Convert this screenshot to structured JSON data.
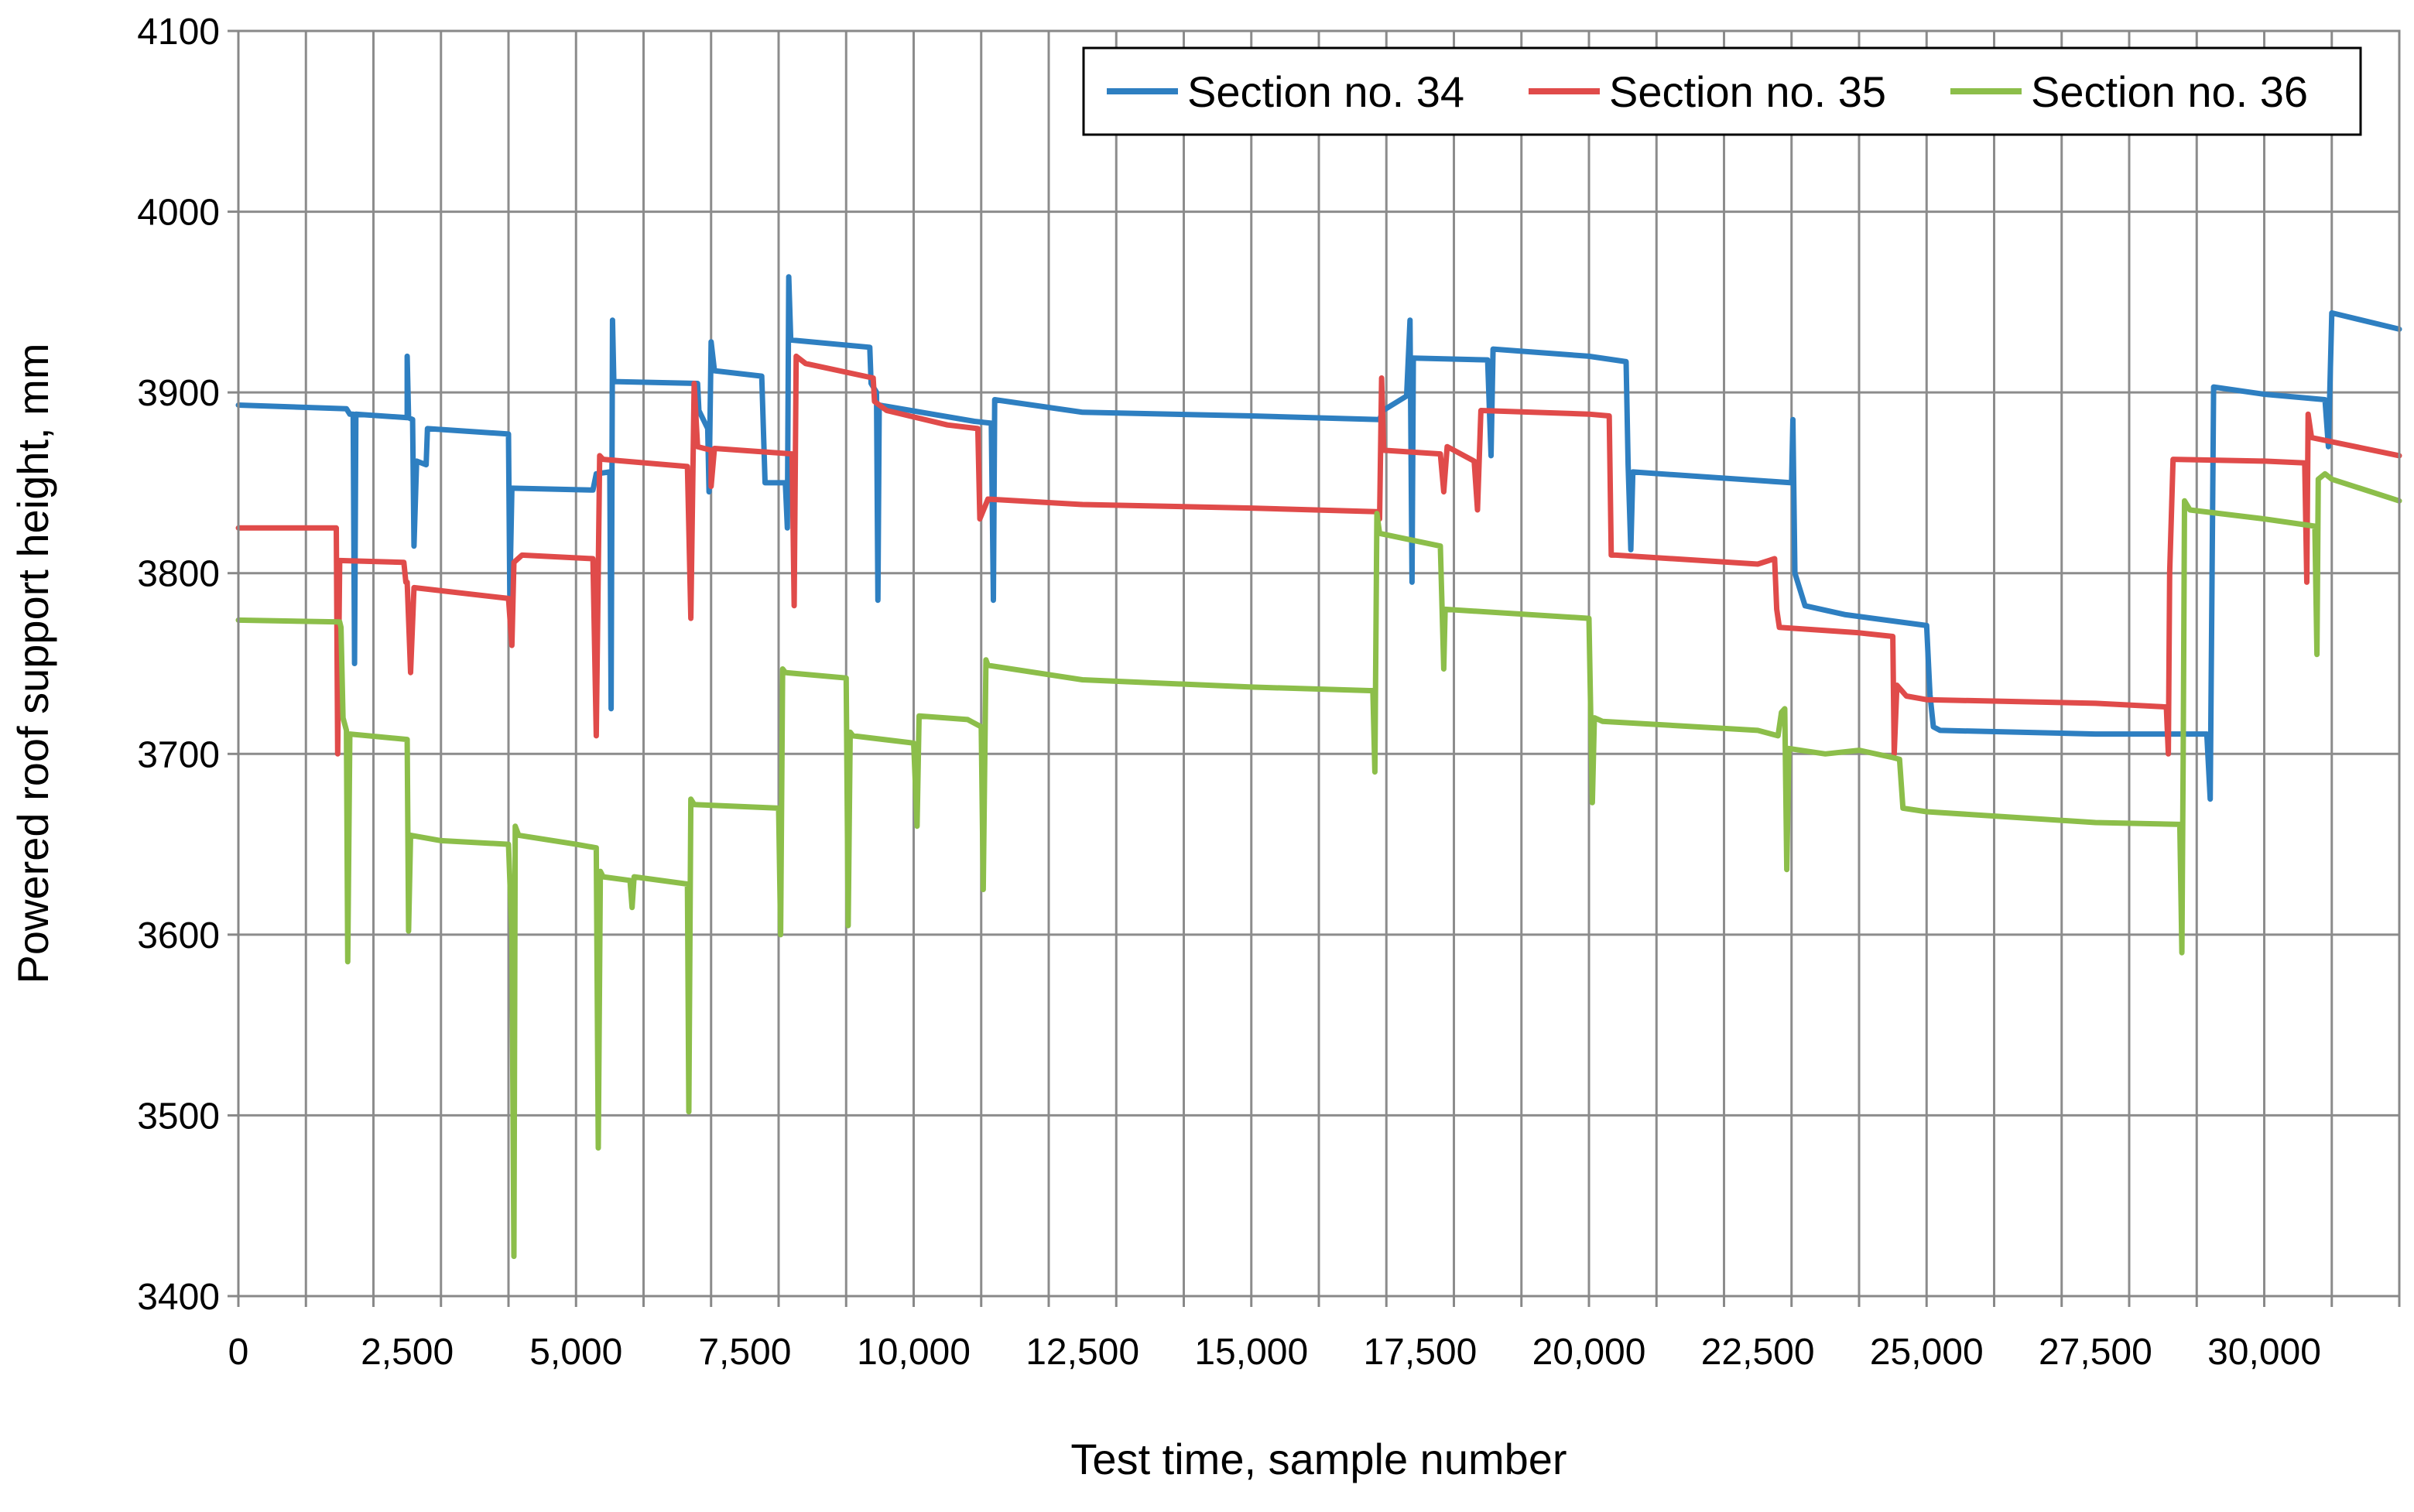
{
  "chart_data": {
    "type": "line",
    "title": "",
    "xlabel": "Test time, sample number",
    "ylabel": "Powered roof support  height, mm",
    "xlim": [
      0,
      32000
    ],
    "ylim": [
      3400,
      4100
    ],
    "x_tick_values": [
      0,
      2500,
      5000,
      7500,
      10000,
      12500,
      15000,
      17500,
      20000,
      22500,
      25000,
      27500,
      30000
    ],
    "x_tick_labels": [
      "0",
      "2,500",
      "5,000",
      "7,500",
      "10,000",
      "12,500",
      "15,000",
      "17,500",
      "20,000",
      "22,500",
      "25,000",
      "27,500",
      "30,000"
    ],
    "x_grid_step": 1000,
    "y_tick_values": [
      3400,
      3500,
      3600,
      3700,
      3800,
      3900,
      4000,
      4100
    ],
    "y_tick_labels": [
      "3400",
      "3500",
      "3600",
      "3700",
      "3800",
      "3900",
      "4000",
      "4100"
    ],
    "grid": true,
    "legend_position": "top-right",
    "series": [
      {
        "name": "Section no. 34",
        "color": "#2e7fc1",
        "points": [
          [
            0,
            3893
          ],
          [
            1600,
            3891
          ],
          [
            1650,
            3888
          ],
          [
            1700,
            3888
          ],
          [
            1720,
            3750
          ],
          [
            1740,
            3888
          ],
          [
            2500,
            3886
          ],
          [
            2500,
            3920
          ],
          [
            2520,
            3886
          ],
          [
            2580,
            3885
          ],
          [
            2600,
            3815
          ],
          [
            2640,
            3862
          ],
          [
            2780,
            3860
          ],
          [
            2800,
            3880
          ],
          [
            4000,
            3877
          ],
          [
            4020,
            3788
          ],
          [
            4050,
            3847
          ],
          [
            5250,
            3846
          ],
          [
            5300,
            3855
          ],
          [
            5500,
            3856
          ],
          [
            5520,
            3725
          ],
          [
            5540,
            3940
          ],
          [
            5560,
            3906
          ],
          [
            6800,
            3905
          ],
          [
            6820,
            3890
          ],
          [
            6950,
            3880
          ],
          [
            6970,
            3845
          ],
          [
            7000,
            3928
          ],
          [
            7050,
            3912
          ],
          [
            7750,
            3909
          ],
          [
            7800,
            3850
          ],
          [
            8100,
            3850
          ],
          [
            8130,
            3825
          ],
          [
            8150,
            3964
          ],
          [
            8180,
            3929
          ],
          [
            9350,
            3925
          ],
          [
            9370,
            3905
          ],
          [
            9450,
            3900
          ],
          [
            9470,
            3785
          ],
          [
            9490,
            3893
          ],
          [
            10900,
            3884
          ],
          [
            11150,
            3883
          ],
          [
            11180,
            3785
          ],
          [
            11200,
            3896
          ],
          [
            12500,
            3889
          ],
          [
            15000,
            3887
          ],
          [
            16900,
            3885
          ],
          [
            16950,
            3890
          ],
          [
            17300,
            3898
          ],
          [
            17350,
            3940
          ],
          [
            17380,
            3795
          ],
          [
            17400,
            3919
          ],
          [
            18500,
            3918
          ],
          [
            18550,
            3865
          ],
          [
            18580,
            3924
          ],
          [
            20000,
            3920
          ],
          [
            20550,
            3917
          ],
          [
            20580,
            3860
          ],
          [
            20620,
            3813
          ],
          [
            20650,
            3856
          ],
          [
            23000,
            3850
          ],
          [
            23020,
            3885
          ],
          [
            23050,
            3800
          ],
          [
            23200,
            3782
          ],
          [
            23800,
            3777
          ],
          [
            25000,
            3771
          ],
          [
            25050,
            3733
          ],
          [
            25100,
            3715
          ],
          [
            25200,
            3713
          ],
          [
            27500,
            3711
          ],
          [
            29150,
            3711
          ],
          [
            29200,
            3675
          ],
          [
            29250,
            3903
          ],
          [
            30000,
            3899
          ],
          [
            30900,
            3896
          ],
          [
            30950,
            3870
          ],
          [
            31000,
            3944
          ],
          [
            32000,
            3935
          ]
        ]
      },
      {
        "name": "Section no. 35",
        "color": "#e04b4a",
        "points": [
          [
            0,
            3825
          ],
          [
            1450,
            3825
          ],
          [
            1470,
            3700
          ],
          [
            1500,
            3807
          ],
          [
            2450,
            3806
          ],
          [
            2480,
            3795
          ],
          [
            2500,
            3795
          ],
          [
            2550,
            3745
          ],
          [
            2600,
            3792
          ],
          [
            4000,
            3786
          ],
          [
            4050,
            3760
          ],
          [
            4080,
            3806
          ],
          [
            4200,
            3810
          ],
          [
            5250,
            3808
          ],
          [
            5300,
            3710
          ],
          [
            5350,
            3865
          ],
          [
            5400,
            3863
          ],
          [
            6650,
            3859
          ],
          [
            6700,
            3775
          ],
          [
            6750,
            3905
          ],
          [
            6800,
            3870
          ],
          [
            7000,
            3868
          ],
          [
            7000,
            3848
          ],
          [
            7050,
            3869
          ],
          [
            8200,
            3866
          ],
          [
            8230,
            3782
          ],
          [
            8260,
            3920
          ],
          [
            8400,
            3916
          ],
          [
            9400,
            3908
          ],
          [
            9420,
            3895
          ],
          [
            9600,
            3890
          ],
          [
            10500,
            3882
          ],
          [
            10950,
            3880
          ],
          [
            10980,
            3830
          ],
          [
            11100,
            3841
          ],
          [
            12500,
            3838
          ],
          [
            15000,
            3836
          ],
          [
            16850,
            3834
          ],
          [
            16900,
            3830
          ],
          [
            16930,
            3908
          ],
          [
            16960,
            3868
          ],
          [
            17800,
            3866
          ],
          [
            17850,
            3845
          ],
          [
            17900,
            3870
          ],
          [
            18300,
            3862
          ],
          [
            18350,
            3835
          ],
          [
            18400,
            3890
          ],
          [
            20000,
            3888
          ],
          [
            20300,
            3887
          ],
          [
            20330,
            3810
          ],
          [
            20400,
            3810
          ],
          [
            22500,
            3805
          ],
          [
            22750,
            3808
          ],
          [
            22780,
            3780
          ],
          [
            22820,
            3770
          ],
          [
            24000,
            3767
          ],
          [
            24500,
            3765
          ],
          [
            24520,
            3700
          ],
          [
            24560,
            3738
          ],
          [
            24700,
            3732
          ],
          [
            25000,
            3730
          ],
          [
            27500,
            3728
          ],
          [
            28550,
            3726
          ],
          [
            28580,
            3700
          ],
          [
            28600,
            3800
          ],
          [
            28650,
            3863
          ],
          [
            30000,
            3862
          ],
          [
            30600,
            3861
          ],
          [
            30630,
            3795
          ],
          [
            30650,
            3888
          ],
          [
            30700,
            3875
          ],
          [
            32000,
            3865
          ]
        ]
      },
      {
        "name": "Section no. 36",
        "color": "#8cbe4a",
        "points": [
          [
            0,
            3774
          ],
          [
            1500,
            3773
          ],
          [
            1520,
            3770
          ],
          [
            1550,
            3720
          ],
          [
            1600,
            3713
          ],
          [
            1620,
            3585
          ],
          [
            1650,
            3711
          ],
          [
            2500,
            3708
          ],
          [
            2520,
            3602
          ],
          [
            2550,
            3655
          ],
          [
            3000,
            3652
          ],
          [
            4000,
            3650
          ],
          [
            4050,
            3600
          ],
          [
            4080,
            3422
          ],
          [
            4100,
            3660
          ],
          [
            4150,
            3655
          ],
          [
            5000,
            3650
          ],
          [
            5300,
            3648
          ],
          [
            5330,
            3482
          ],
          [
            5360,
            3635
          ],
          [
            5400,
            3632
          ],
          [
            5800,
            3630
          ],
          [
            5830,
            3615
          ],
          [
            5860,
            3632
          ],
          [
            6650,
            3628
          ],
          [
            6670,
            3502
          ],
          [
            6700,
            3675
          ],
          [
            6750,
            3672
          ],
          [
            8000,
            3670
          ],
          [
            8030,
            3600
          ],
          [
            8060,
            3747
          ],
          [
            8100,
            3745
          ],
          [
            9000,
            3742
          ],
          [
            9030,
            3605
          ],
          [
            9060,
            3712
          ],
          [
            9100,
            3710
          ],
          [
            10000,
            3706
          ],
          [
            10050,
            3660
          ],
          [
            10080,
            3721
          ],
          [
            10800,
            3719
          ],
          [
            11000,
            3715
          ],
          [
            11030,
            3625
          ],
          [
            11070,
            3752
          ],
          [
            11100,
            3749
          ],
          [
            12500,
            3741
          ],
          [
            15000,
            3737
          ],
          [
            16750,
            3735
          ],
          [
            16800,
            3735
          ],
          [
            16830,
            3690
          ],
          [
            16860,
            3833
          ],
          [
            16900,
            3822
          ],
          [
            17800,
            3815
          ],
          [
            17850,
            3747
          ],
          [
            17870,
            3780
          ],
          [
            20000,
            3775
          ],
          [
            20050,
            3673
          ],
          [
            20080,
            3720
          ],
          [
            20200,
            3718
          ],
          [
            22500,
            3713
          ],
          [
            22800,
            3710
          ],
          [
            22850,
            3723
          ],
          [
            22900,
            3725
          ],
          [
            22930,
            3636
          ],
          [
            22960,
            3703
          ],
          [
            23500,
            3700
          ],
          [
            24000,
            3702
          ],
          [
            24500,
            3698
          ],
          [
            24600,
            3697
          ],
          [
            24650,
            3670
          ],
          [
            25000,
            3668
          ],
          [
            27500,
            3662
          ],
          [
            28750,
            3661
          ],
          [
            28780,
            3590
          ],
          [
            28800,
            3700
          ],
          [
            28820,
            3840
          ],
          [
            28900,
            3835
          ],
          [
            30000,
            3830
          ],
          [
            30750,
            3826
          ],
          [
            30780,
            3755
          ],
          [
            30800,
            3852
          ],
          [
            30900,
            3855
          ],
          [
            31000,
            3852
          ],
          [
            32000,
            3840
          ]
        ]
      }
    ]
  }
}
